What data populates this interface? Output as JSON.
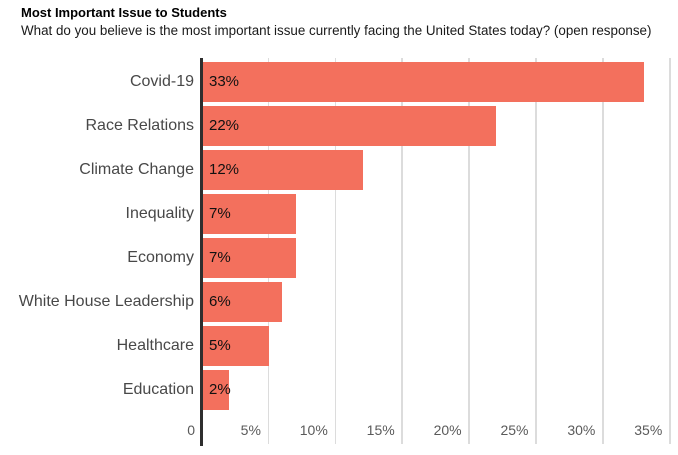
{
  "chart_data": {
    "type": "bar",
    "orientation": "horizontal",
    "title": "Most Important Issue to Students",
    "subtitle": "What do you believe is the most important issue currently facing the United States today? (open response)",
    "categories": [
      "Covid-19",
      "Race Relations",
      "Climate Change",
      "Inequality",
      "Economy",
      "White House Leadership",
      "Healthcare",
      "Education"
    ],
    "values": [
      33,
      22,
      12,
      7,
      7,
      6,
      5,
      2
    ],
    "value_labels": [
      "33%",
      "22%",
      "12%",
      "7%",
      "7%",
      "6%",
      "5%",
      "2%"
    ],
    "xlabel": "",
    "ylabel": "",
    "x_axis": {
      "min": 0,
      "max": 35.6,
      "ticks": [
        0,
        5,
        10,
        15,
        20,
        25,
        30,
        35
      ],
      "tick_labels": [
        "0",
        "5%",
        "10%",
        "15%",
        "20%",
        "25%",
        "30%",
        "35%"
      ]
    },
    "grid": "vertical-on",
    "legend": "none",
    "colors": {
      "bar": "#F3705D",
      "axis_line": "#2E2E2E",
      "gridline": "#DCDCDC",
      "value_label": "#111111",
      "category_label": "#484848",
      "tick_label": "#5A5A5A",
      "title": "#000000",
      "subtitle": "#1A1A1A",
      "background": "#FFFFFF"
    }
  }
}
